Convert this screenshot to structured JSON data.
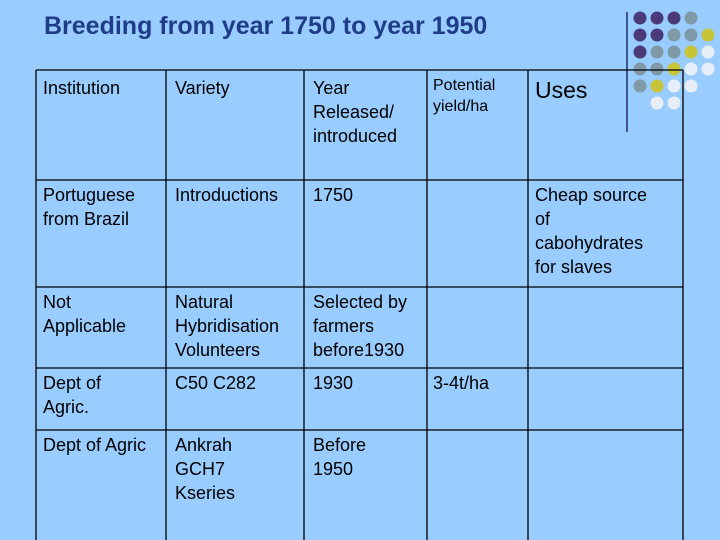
{
  "title": "Breeding from year 1750 to year 1950",
  "table": {
    "headers": [
      "Institution",
      "Variety",
      "Year\nReleased/\nintroduced",
      "Potential\nyield/ha",
      "Uses"
    ],
    "rows": [
      [
        "Portuguese\nfrom Brazil",
        "Introductions",
        "1750",
        null,
        "Cheap source\nof\ncabohydrates\nfor slaves"
      ],
      [
        "Not\nApplicable",
        "Natural\nHybridisation\nVolunteers",
        "Selected by\nfarmers\nbefore1930",
        null,
        null
      ],
      [
        "Dept  of\nAgric.",
        "C50 C282",
        "1930",
        "3-4t/ha",
        null
      ],
      [
        "Dept of Agric",
        "Ankrah\nGCH7\nKseries",
        "Before\n1950",
        null,
        null
      ]
    ]
  }
}
